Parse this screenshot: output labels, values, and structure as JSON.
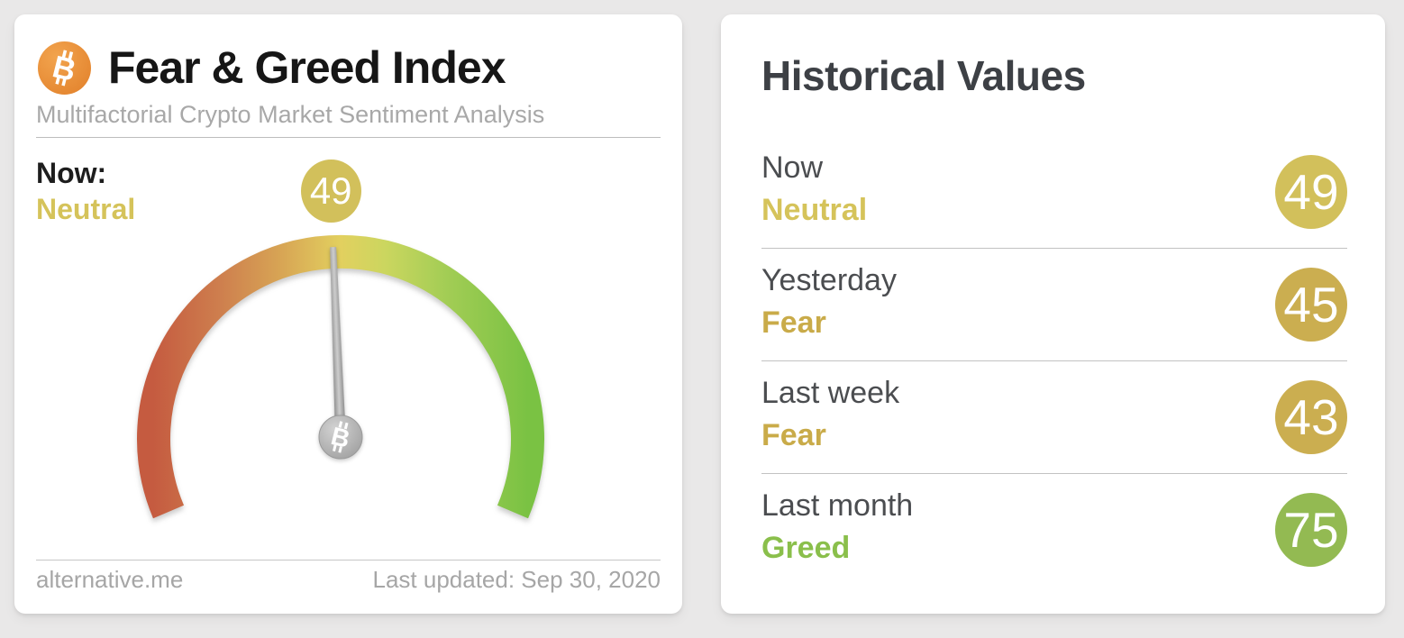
{
  "colors": {
    "background": "#e9e8e8",
    "card": "#ffffff",
    "neutral": "#d5c35a",
    "fear": "#c9ab49",
    "greed": "#8abf4b",
    "badge_neutral": "#d2c05b",
    "badge_fear": "#cbae50",
    "badge_greed": "#93ba52",
    "bitcoin_orange": "#e98a32",
    "needle_gray": "#a3a3a3",
    "gauge_scale": [
      "#c55b40",
      "#ce7f4e",
      "#d8a755",
      "#e2d05f",
      "#cbd65f",
      "#a3cd55",
      "#7ac243"
    ]
  },
  "fear_greed_card": {
    "title": "Fear & Greed Index",
    "subtitle": "Multifactorial Crypto Market Sentiment Analysis",
    "now_label": "Now:",
    "now_sentiment": "Neutral",
    "gauge": {
      "value": 49,
      "min": 0,
      "max": 100
    },
    "footer_source": "alternative.me",
    "footer_updated": "Last updated: Sep 30, 2020"
  },
  "historical_card": {
    "title": "Historical Values",
    "rows": [
      {
        "label": "Now",
        "sentiment": "Neutral",
        "value": 49,
        "sentiment_color": "#d5c35a",
        "badge_color": "#d2c05b"
      },
      {
        "label": "Yesterday",
        "sentiment": "Fear",
        "value": 45,
        "sentiment_color": "#c9ab49",
        "badge_color": "#cbae50"
      },
      {
        "label": "Last week",
        "sentiment": "Fear",
        "value": 43,
        "sentiment_color": "#c9ab49",
        "badge_color": "#cbae50"
      },
      {
        "label": "Last month",
        "sentiment": "Greed",
        "value": 75,
        "sentiment_color": "#8abf4b",
        "badge_color": "#93ba52"
      }
    ]
  },
  "chart_data": {
    "type": "gauge",
    "title": "Fear & Greed Index",
    "subtitle": "Multifactorial Crypto Market Sentiment Analysis",
    "value": 49,
    "classification": "Neutral",
    "range": [
      0,
      100
    ],
    "scale_description": "0 = fear (red, left end) to 100 = greed (green, right end), ~226 degree sweep",
    "last_updated": "Sep 30, 2020",
    "source": "alternative.me",
    "historical": [
      {
        "period": "Now",
        "value": 49,
        "classification": "Neutral"
      },
      {
        "period": "Yesterday",
        "value": 45,
        "classification": "Fear"
      },
      {
        "period": "Last week",
        "value": 43,
        "classification": "Fear"
      },
      {
        "period": "Last month",
        "value": 75,
        "classification": "Greed"
      }
    ]
  }
}
